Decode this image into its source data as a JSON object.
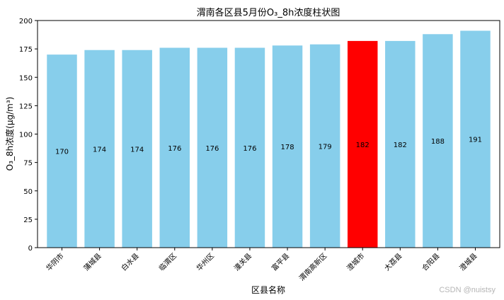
{
  "chart_data": {
    "type": "bar",
    "title": "渭南各区县5月份O₃_8h浓度柱状图",
    "xlabel": "区县名称",
    "ylabel": "O₃_8h浓度(μg/m³)",
    "ylim": [
      0,
      200
    ],
    "yticks": [
      0,
      25,
      50,
      75,
      100,
      125,
      150,
      175,
      200
    ],
    "categories": [
      "华阴市",
      "蒲城县",
      "白水县",
      "临渭区",
      "华州区",
      "潼关县",
      "富平县",
      "渭南高新区",
      "澄城市",
      "大荔县",
      "合阳县",
      "澄城县"
    ],
    "values": [
      170,
      174,
      174,
      176,
      176,
      176,
      178,
      179,
      182,
      182,
      188,
      191
    ],
    "data_labels": [
      "170",
      "174",
      "174",
      "176",
      "176",
      "176",
      "178",
      "179",
      "182",
      "182",
      "188",
      "191"
    ],
    "highlight_index": 8,
    "colors": {
      "bar": "#87ceeb",
      "highlight": "#ff0000"
    },
    "grid": false,
    "legend": "none"
  },
  "watermark": "CSDN @nuistsy"
}
